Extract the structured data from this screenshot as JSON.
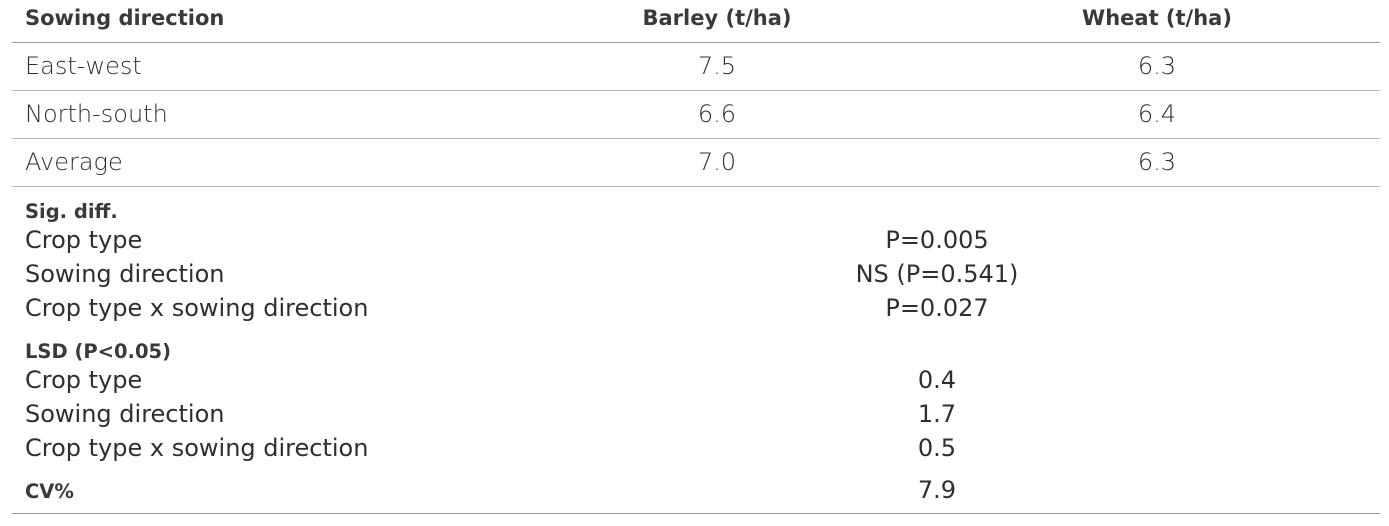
{
  "table": {
    "headers": [
      "Sowing direction",
      "Barley (t/ha)",
      "Wheat (t/ha)"
    ],
    "rows": [
      {
        "label": "East-west",
        "barley": "7.5",
        "wheat": "6.3"
      },
      {
        "label": "North-south",
        "barley": "6.6",
        "wheat": "6.4"
      },
      {
        "label": "Average",
        "barley": "7.0",
        "wheat": "6.3"
      }
    ],
    "sig_diff": {
      "title": "Sig. diff.",
      "rows": [
        {
          "label": "Crop type",
          "value": "P=0.005"
        },
        {
          "label": "Sowing direction",
          "value": "NS (P=0.541)"
        },
        {
          "label": "Crop type x sowing direction",
          "value": "P=0.027"
        }
      ]
    },
    "lsd": {
      "title": "LSD (P<0.05)",
      "rows": [
        {
          "label": "Crop type",
          "value": "0.4"
        },
        {
          "label": "Sowing direction",
          "value": "1.7"
        },
        {
          "label": "Crop type x sowing direction",
          "value": "0.5"
        }
      ]
    },
    "cv": {
      "label": "CV%",
      "value": "7.9"
    }
  }
}
